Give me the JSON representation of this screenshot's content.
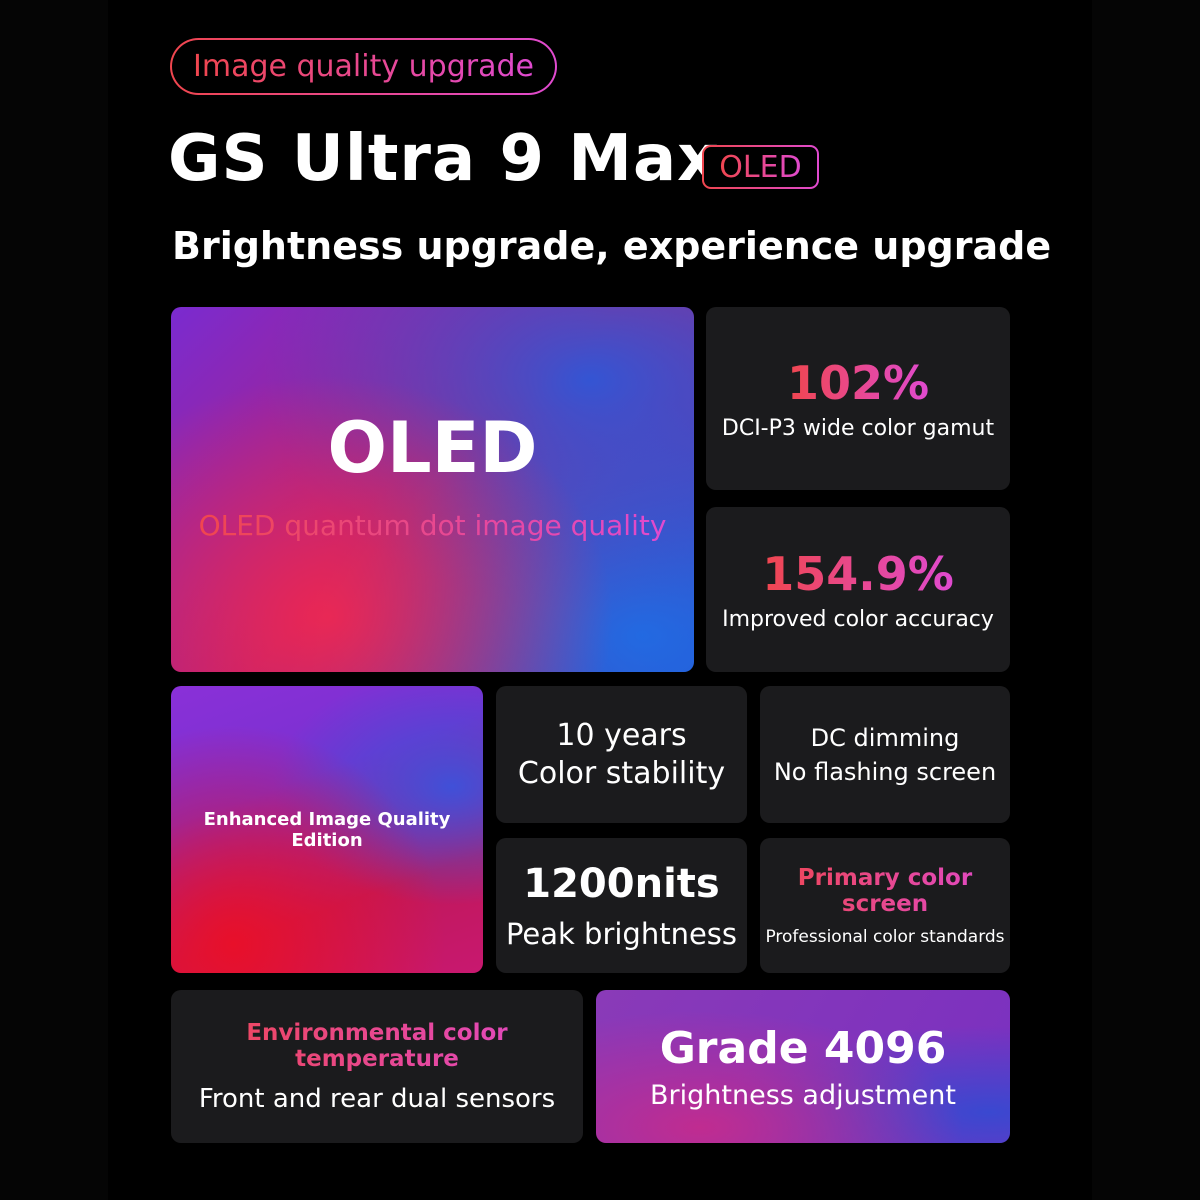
{
  "header": {
    "tag": "Image quality upgrade",
    "title": "GS Ultra 9 Max",
    "badge": "OLED",
    "subtitle": "Brightness upgrade, experience upgrade"
  },
  "hero": {
    "title": "OLED",
    "subtitle": "OLED quantum dot image quality"
  },
  "stats": [
    {
      "value": "102%",
      "label": "DCI-P3 wide color gamut"
    },
    {
      "value": "154.9%",
      "label": "Improved color accuracy"
    }
  ],
  "features": {
    "enhanced": "Enhanced Image Quality Edition",
    "years": {
      "line1": "10 years",
      "line2": "Color stability"
    },
    "dc": {
      "line1": "DC dimming",
      "line2": "No flashing screen"
    },
    "nits": {
      "value": "1200nits",
      "label": "Peak brightness"
    },
    "primary": {
      "title": "Primary color screen",
      "label": "Professional color standards"
    },
    "env": {
      "title": "Environmental color temperature",
      "label": "Front and rear dual sensors"
    },
    "grade": {
      "title": "Grade 4096",
      "label": "Brightness adjustment"
    }
  },
  "colors": {
    "accent_start": "#f0464e",
    "accent_end": "#e04ad0",
    "card": "#1b1b1d",
    "background": "#000000"
  }
}
